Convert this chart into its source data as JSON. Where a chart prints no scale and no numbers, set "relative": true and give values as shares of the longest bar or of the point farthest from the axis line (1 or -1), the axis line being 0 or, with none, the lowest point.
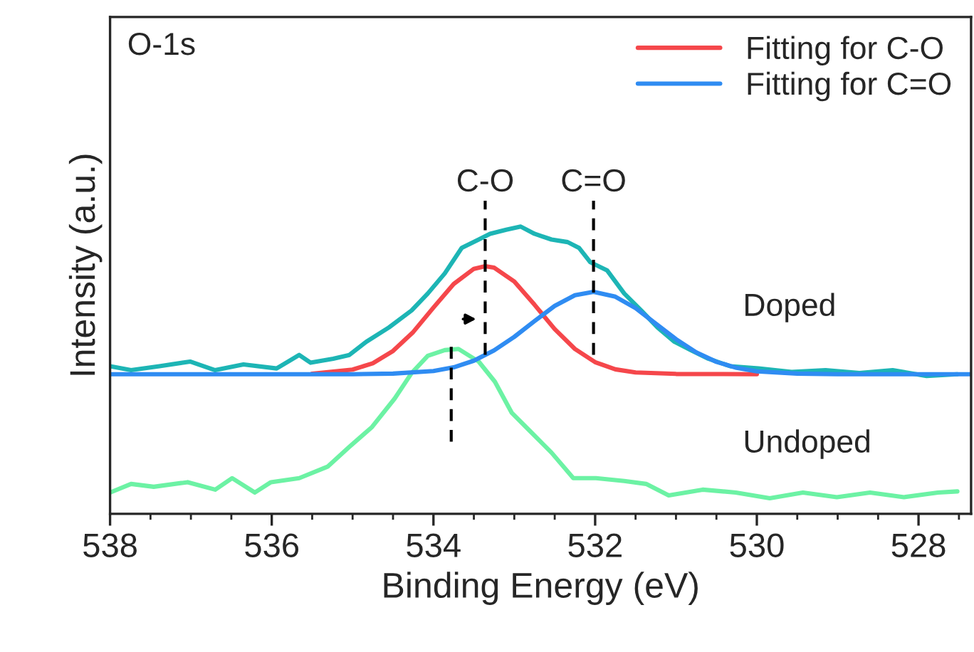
{
  "chart_data": {
    "type": "line",
    "relative": true,
    "xlabel": "Binding Energy (eV)",
    "ylabel": "Intensity (a.u.)",
    "xlim": [
      538,
      527.35
    ],
    "xticks": [
      538,
      536,
      534,
      532,
      530,
      528
    ],
    "legend": "top right",
    "grid": false,
    "series": [
      {
        "color": "#1db5b5",
        "x": [
          538,
          537.74,
          537.39,
          537.01,
          536.7,
          536.35,
          535.94,
          535.66,
          535.52,
          535.24,
          535.04,
          534.83,
          534.55,
          534.27,
          534.07,
          533.86,
          533.65,
          533.44,
          533.3,
          533.1,
          532.92,
          532.75,
          532.54,
          532.34,
          532.2,
          532.06,
          531.85,
          531.64,
          531.43,
          531.23,
          531.02,
          530.81,
          530.6,
          530.33,
          529.98,
          529.57,
          529.15,
          528.73,
          528.32,
          527.9,
          527.52
        ],
        "values": [
          0.514,
          0.5,
          0.514,
          0.53,
          0.5,
          0.52,
          0.506,
          0.553,
          0.526,
          0.54,
          0.553,
          0.599,
          0.649,
          0.708,
          0.767,
          0.837,
          0.926,
          0.955,
          0.975,
          0.989,
          1.0,
          0.975,
          0.955,
          0.946,
          0.926,
          0.876,
          0.847,
          0.767,
          0.708,
          0.649,
          0.599,
          0.569,
          0.54,
          0.514,
          0.506,
          0.494,
          0.5,
          0.49,
          0.5,
          0.48,
          0.486
        ]
      },
      {
        "color": "#6cf2a4",
        "x": [
          538,
          537.74,
          537.46,
          537.04,
          536.7,
          536.49,
          536.21,
          536.01,
          535.66,
          535.31,
          535.04,
          534.76,
          534.48,
          534.27,
          534.07,
          533.86,
          533.69,
          533.44,
          533.24,
          533.03,
          532.82,
          532.54,
          532.27,
          531.99,
          531.64,
          531.37,
          531.09,
          530.67,
          530.26,
          529.84,
          529.43,
          529.01,
          528.6,
          528.18,
          527.76,
          527.52
        ],
        "values": [
          0.074,
          0.104,
          0.094,
          0.11,
          0.084,
          0.124,
          0.074,
          0.11,
          0.124,
          0.164,
          0.233,
          0.302,
          0.401,
          0.49,
          0.55,
          0.57,
          0.574,
          0.53,
          0.46,
          0.351,
          0.292,
          0.213,
          0.124,
          0.124,
          0.114,
          0.104,
          0.064,
          0.084,
          0.074,
          0.054,
          0.074,
          0.058,
          0.074,
          0.058,
          0.074,
          0.078
        ]
      },
      {
        "name": "Fitting for C-O",
        "color": "#f5474b",
        "x": [
          535.5,
          535,
          534.75,
          534.5,
          534.25,
          534,
          533.75,
          533.5,
          533.36,
          533.25,
          533,
          532.75,
          532.5,
          532.25,
          532,
          531.75,
          531.5,
          531,
          530
        ],
        "values": [
          0.488,
          0.502,
          0.524,
          0.567,
          0.633,
          0.718,
          0.8,
          0.853,
          0.862,
          0.857,
          0.809,
          0.728,
          0.643,
          0.574,
          0.528,
          0.503,
          0.492,
          0.487,
          0.486
        ]
      },
      {
        "name": "Fitting for C=O",
        "color": "#2f8cf2",
        "x": [
          538,
          536,
          535,
          534.5,
          534,
          533.75,
          533.5,
          533.25,
          533,
          532.75,
          532.5,
          532.25,
          532.02,
          531.75,
          531.5,
          531.25,
          531,
          530.75,
          530.5,
          530.25,
          530,
          529.5,
          529,
          527.35
        ],
        "values": [
          0.486,
          0.486,
          0.486,
          0.488,
          0.497,
          0.51,
          0.533,
          0.569,
          0.616,
          0.671,
          0.724,
          0.761,
          0.773,
          0.756,
          0.716,
          0.662,
          0.608,
          0.562,
          0.529,
          0.508,
          0.496,
          0.488,
          0.486,
          0.486
        ]
      }
    ],
    "ref_lines": [
      {
        "axis": "x",
        "value": 533.36,
        "label": "C-O",
        "line_style": "dashed",
        "color": "#000000"
      },
      {
        "axis": "x",
        "value": 532.02,
        "label": "C=O",
        "line_style": "dashed",
        "color": "#000000"
      },
      {
        "axis": "x",
        "value": 533.78,
        "line_style": "dashed",
        "color": "#000000"
      }
    ],
    "annotations": [
      "O-1s",
      "Doped",
      "Undoped"
    ]
  }
}
